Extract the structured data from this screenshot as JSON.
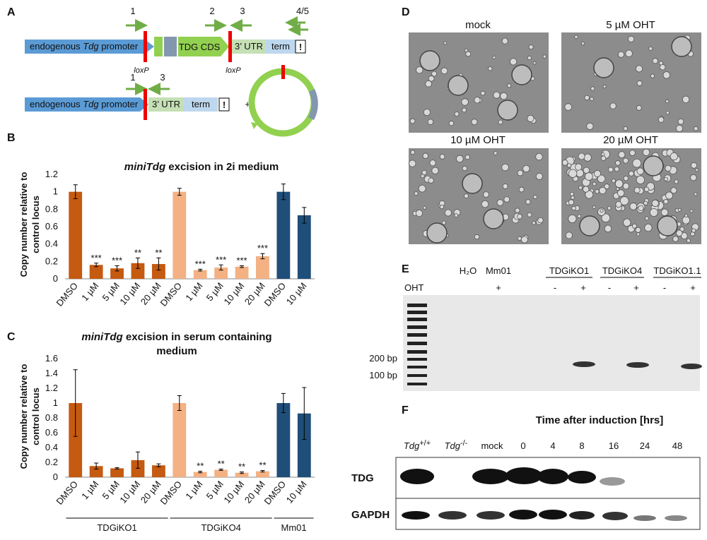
{
  "panel_labels": [
    "A",
    "B",
    "C",
    "D",
    "E",
    "F"
  ],
  "construct": {
    "primers_top": [
      "1",
      "2",
      "3",
      "4/5"
    ],
    "promoter": [
      "endogenous ",
      "Tdg",
      " promoter"
    ],
    "cds": "TDG CDS",
    "utr": "3’ UTR",
    "term": "term",
    "stop": "!",
    "loxp": "loxP",
    "primers_bottom": [
      "1",
      "3"
    ],
    "plus": "+"
  },
  "chart_data": [
    {
      "type": "bar",
      "title": [
        "miniTdg",
        " excision in 2i medium"
      ],
      "ylabel": [
        "Copy number relative to",
        "control locus"
      ],
      "categories": [
        "DMSO",
        "1 µM",
        "5 µM",
        "10 µM",
        "20 µM",
        "DMSO",
        "1 µM",
        "5 µM",
        "10 µM",
        "20 µM",
        "DMSO",
        "10 µM"
      ],
      "values": [
        1.0,
        0.16,
        0.12,
        0.18,
        0.17,
        1.0,
        0.1,
        0.13,
        0.14,
        0.26,
        1.0,
        0.73
      ],
      "errors": [
        0.08,
        0.02,
        0.03,
        0.06,
        0.07,
        0.04,
        0.01,
        0.03,
        0.01,
        0.03,
        0.09,
        0.09
      ],
      "significance": [
        null,
        "***",
        "***",
        "**",
        "**",
        null,
        "***",
        "***",
        "***",
        "***",
        null,
        null
      ],
      "colors": [
        "#c55a11",
        "#c55a11",
        "#c55a11",
        "#c55a11",
        "#c55a11",
        "#f4b183",
        "#f4b183",
        "#f4b183",
        "#f4b183",
        "#f4b183",
        "#1f4e79",
        "#1f4e79"
      ],
      "ylim": [
        0,
        1.2
      ],
      "yticks": [
        0,
        0.2,
        0.4,
        0.6,
        0.8,
        1,
        1.2
      ]
    },
    {
      "type": "bar",
      "title": [
        "miniTdg",
        " excision in serum containing",
        "medium"
      ],
      "ylabel": [
        "Copy number relative to",
        "control locus"
      ],
      "categories": [
        "DMSO",
        "1 µM",
        "5 µM",
        "10 µM",
        "20 µM",
        "DMSO",
        "1 µM",
        "5 µM",
        "10 µM",
        "20 µM",
        "DMSO",
        "10 µM"
      ],
      "values": [
        1.0,
        0.15,
        0.12,
        0.23,
        0.16,
        1.0,
        0.07,
        0.1,
        0.06,
        0.08,
        1.0,
        0.86
      ],
      "errors": [
        0.45,
        0.04,
        0.01,
        0.11,
        0.02,
        0.1,
        0.01,
        0.01,
        0.01,
        0.01,
        0.13,
        0.35
      ],
      "significance": [
        null,
        null,
        null,
        null,
        null,
        null,
        "**",
        "**",
        "**",
        "**",
        null,
        null
      ],
      "colors": [
        "#c55a11",
        "#c55a11",
        "#c55a11",
        "#c55a11",
        "#c55a11",
        "#f4b183",
        "#f4b183",
        "#f4b183",
        "#f4b183",
        "#f4b183",
        "#1f4e79",
        "#1f4e79"
      ],
      "groups": [
        "TDGiKO1",
        "TDGiKO4",
        "Mm01"
      ],
      "ylim": [
        0,
        1.6
      ],
      "yticks": [
        0,
        0.2,
        0.4,
        0.6,
        0.8,
        1,
        1.2,
        1.4,
        1.6
      ]
    }
  ],
  "microscopy": {
    "labels": [
      "mock",
      "5 µM OHT",
      "10 µM OHT",
      "20 µM OHT"
    ]
  },
  "gel": {
    "lanes": [
      "H₂O",
      "Mm01",
      "TDGiKO1",
      "TDGiKO4",
      "TDGiKO1.1"
    ],
    "treatment": "OHT",
    "signs": [
      "+",
      "-",
      "+",
      "-",
      "+",
      "-",
      "+"
    ],
    "markers": [
      "200 bp",
      "100 bp"
    ]
  },
  "western": {
    "title": "Time after induction [hrs]",
    "genotypes": [
      {
        "gene": "Tdg",
        "sup": "+/+"
      },
      {
        "gene": "Tdg",
        "sup": "-/-"
      }
    ],
    "lanes": [
      "mock",
      "0",
      "4",
      "8",
      "16",
      "24",
      "48"
    ],
    "rows": [
      "TDG",
      "GAPDH"
    ]
  }
}
